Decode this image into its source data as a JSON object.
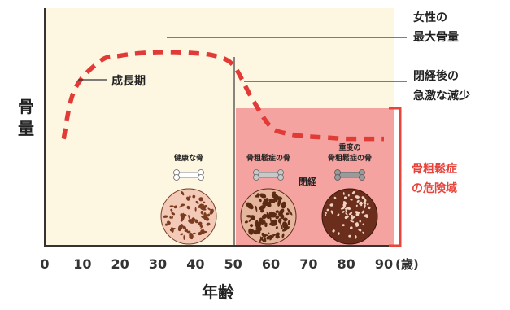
{
  "y_axis_label": [
    "骨",
    "量"
  ],
  "x_axis_title": "年齢",
  "unit": "(歳)",
  "annotations": {
    "growth": "成長期",
    "peak": [
      "女性の",
      "最大骨量"
    ],
    "post_menopause": [
      "閉経後の",
      "急激な減少"
    ],
    "menopause": "閉経",
    "risk_zone": [
      "骨粗鬆症",
      "の危険域"
    ]
  },
  "bone_labels": {
    "healthy": "健康な骨",
    "osteoporosis": "骨粗鬆症の骨",
    "severe": [
      "重度の",
      "骨粗鬆症の骨"
    ]
  },
  "colors": {
    "background": "#fdf6e0",
    "risk_fill": "#f4a3a0",
    "risk_bracket": "#e8443b",
    "curve": "#e23a36",
    "axis": "#333333"
  },
  "chart_data": {
    "type": "line",
    "x": [
      5,
      8,
      15,
      20,
      25,
      30,
      35,
      40,
      45,
      50,
      55,
      60,
      65,
      70,
      75,
      80,
      85,
      90
    ],
    "series": [
      {
        "values": [
          0.45,
          0.66,
          0.78,
          0.8,
          0.81,
          0.815,
          0.815,
          0.81,
          0.8,
          0.76,
          0.62,
          0.5,
          0.47,
          0.46,
          0.455,
          0.45,
          0.45,
          0.45
        ]
      }
    ],
    "xticks": [
      "0",
      "10",
      "20",
      "30",
      "40",
      "50",
      "60",
      "70",
      "80",
      "90"
    ],
    "xlim": [
      0,
      90
    ],
    "ylim": [
      0,
      1
    ],
    "menopause_age": 50,
    "grid": false
  }
}
